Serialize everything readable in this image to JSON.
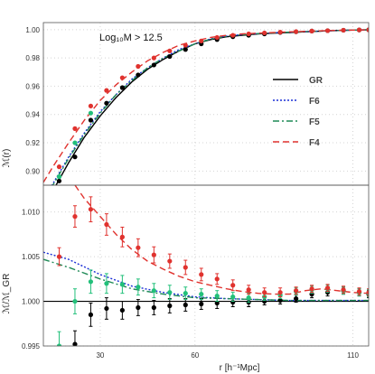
{
  "chart_data": {
    "type": "line",
    "annotation": "Log₁₀M > 12.5",
    "colors": {
      "GR": "#000000",
      "F6": "#1a2ed6",
      "F5": "#1f8a57",
      "F4": "#e0322e",
      "F5_points": "#22c07a"
    },
    "x_axis": {
      "label": "r [h⁻¹Mpc]",
      "xlim": [
        12,
        115
      ],
      "ticks": [
        30,
        60,
        110
      ]
    },
    "top_panel": {
      "ylabel": "ℳ(r)",
      "ylim": [
        0.89,
        1.005
      ],
      "yticks": [
        "0.90",
        "0.92",
        "0.94",
        "0.96",
        "0.98",
        "1.00"
      ],
      "legend": [
        "GR",
        "F6",
        "F5",
        "F4"
      ],
      "legend_position": "center-right",
      "series": [
        {
          "name": "GR",
          "style": "solid",
          "x": [
            12,
            15,
            20,
            25,
            30,
            35,
            40,
            45,
            50,
            55,
            60,
            65,
            70,
            75,
            80,
            85,
            90,
            95,
            100,
            105,
            110,
            115
          ],
          "y": [
            0.876,
            0.886,
            0.906,
            0.924,
            0.939,
            0.952,
            0.963,
            0.972,
            0.979,
            0.985,
            0.99,
            0.993,
            0.995,
            0.996,
            0.997,
            0.9975,
            0.998,
            0.9985,
            0.999,
            0.9994,
            0.9997,
            0.9999
          ]
        },
        {
          "name": "F6",
          "style": "dotted",
          "x": [
            12,
            15,
            20,
            25,
            30,
            35,
            40,
            45,
            50,
            55,
            60,
            65,
            70,
            75,
            80,
            85,
            90,
            95,
            100,
            105,
            110,
            115
          ],
          "y": [
            0.881,
            0.891,
            0.91,
            0.927,
            0.942,
            0.954,
            0.965,
            0.973,
            0.98,
            0.986,
            0.99,
            0.9935,
            0.9955,
            0.9965,
            0.9972,
            0.9978,
            0.9982,
            0.9986,
            0.999,
            0.9994,
            0.9997,
            0.9999
          ]
        },
        {
          "name": "F5",
          "style": "dashdot",
          "x": [
            12,
            15,
            20,
            25,
            30,
            35,
            40,
            45,
            50,
            55,
            60,
            65,
            70,
            75,
            80,
            85,
            90,
            95,
            100,
            105,
            110,
            115
          ],
          "y": [
            0.88,
            0.89,
            0.909,
            0.926,
            0.941,
            0.954,
            0.964,
            0.973,
            0.98,
            0.985,
            0.99,
            0.9933,
            0.9953,
            0.9964,
            0.9972,
            0.9978,
            0.9982,
            0.9986,
            0.999,
            0.9994,
            0.9997,
            0.9999
          ]
        },
        {
          "name": "F4",
          "style": "dashed",
          "x": [
            12,
            15,
            20,
            25,
            30,
            35,
            40,
            45,
            50,
            55,
            60,
            65,
            70,
            75,
            80,
            85,
            90,
            95,
            100,
            105,
            110,
            115
          ],
          "y": [
            0.892,
            0.903,
            0.92,
            0.936,
            0.95,
            0.961,
            0.97,
            0.978,
            0.984,
            0.989,
            0.992,
            0.9945,
            0.996,
            0.997,
            0.9975,
            0.998,
            0.9985,
            0.9988,
            0.9992,
            0.9995,
            0.9997,
            0.9999
          ]
        }
      ],
      "points": [
        {
          "name": "GR",
          "x": [
            17,
            22,
            27,
            32,
            37,
            42,
            47,
            52,
            57,
            62,
            67,
            72,
            77,
            82,
            87,
            92,
            97,
            102,
            107,
            112,
            115
          ],
          "y": [
            0.893,
            0.91,
            0.936,
            0.948,
            0.959,
            0.968,
            0.975,
            0.981,
            0.986,
            0.99,
            0.993,
            0.995,
            0.996,
            0.997,
            0.998,
            0.9985,
            0.999,
            0.9993,
            0.9996,
            0.9998,
            0.9999
          ]
        },
        {
          "name": "F5",
          "x": [
            17,
            22,
            27
          ],
          "y": [
            0.896,
            0.92,
            0.941
          ]
        },
        {
          "name": "F4",
          "x": [
            17,
            22,
            27,
            32,
            37,
            42,
            47,
            52,
            57,
            62,
            67,
            72,
            77,
            82,
            87,
            92,
            97,
            102,
            107,
            112,
            115
          ],
          "y": [
            0.903,
            0.93,
            0.946,
            0.957,
            0.966,
            0.974,
            0.98,
            0.985,
            0.989,
            0.992,
            0.9945,
            0.996,
            0.997,
            0.9977,
            0.9982,
            0.9986,
            0.999,
            0.9993,
            0.9996,
            0.9998,
            0.9999
          ]
        }
      ]
    },
    "bottom_panel": {
      "ylabel": "ℳ/ℳ_GR",
      "ylim": [
        0.995,
        1.013
      ],
      "yticks": [
        "0.995",
        "1.000",
        "1.005",
        "1.010"
      ],
      "reference_line": 1.0,
      "series": [
        {
          "name": "F6",
          "style": "dotted",
          "x": [
            12,
            20,
            30,
            40,
            50,
            60,
            70,
            80,
            90,
            100,
            110,
            115
          ],
          "y": [
            1.0055,
            1.0047,
            1.003,
            1.0017,
            1.001,
            1.0005,
            1.0003,
            1.0002,
            1.0001,
            1.0001,
            1.0001,
            1.0001
          ]
        },
        {
          "name": "F5",
          "style": "dashdot",
          "x": [
            12,
            20,
            30,
            40,
            50,
            60,
            70,
            80,
            90,
            100,
            110,
            115
          ],
          "y": [
            1.0047,
            1.0038,
            1.0025,
            1.0014,
            1.0008,
            1.0004,
            1.0003,
            1.0002,
            1.0001,
            1.0001,
            1.0001,
            1.0001
          ]
        },
        {
          "name": "F4",
          "style": "dashed",
          "x": [
            22,
            25,
            30,
            35,
            40,
            45,
            50,
            55,
            60,
            65,
            70,
            75,
            80,
            85,
            90,
            95,
            100,
            105,
            110,
            115
          ],
          "y": [
            1.013,
            1.0115,
            1.0095,
            1.0075,
            1.0058,
            1.0045,
            1.0036,
            1.0028,
            1.0022,
            1.0018,
            1.0014,
            1.0011,
            1.0009,
            1.0008,
            1.0008,
            1.0012,
            1.0014,
            1.0012,
            1.001,
            1.0009
          ]
        }
      ],
      "points": [
        {
          "name": "GR",
          "x": [
            22,
            27,
            32,
            37,
            42,
            47,
            52,
            57,
            62,
            67,
            72,
            77,
            82,
            87,
            92,
            97,
            102,
            107,
            112,
            115
          ],
          "y": [
            0.9952,
            0.9985,
            0.9992,
            0.999,
            0.9993,
            0.9993,
            0.9995,
            0.9996,
            0.9997,
            0.9998,
            0.9999,
            0.9999,
            1.0,
            1.0001,
            1.0003,
            1.0008,
            1.001,
            1.0012,
            1.001,
            1.0008
          ],
          "err": [
            0.0015,
            0.0013,
            0.0012,
            0.001,
            0.0009,
            0.0008,
            0.0008,
            0.0007,
            0.0006,
            0.0006,
            0.0005,
            0.0005,
            0.0004,
            0.0004,
            0.0004,
            0.0004,
            0.0004,
            0.0004,
            0.0004,
            0.0004
          ]
        },
        {
          "name": "F5",
          "x": [
            17,
            22,
            27,
            32,
            37,
            42,
            47,
            52,
            57,
            62,
            67,
            72,
            77,
            82,
            87,
            92,
            97,
            102,
            107,
            112,
            115
          ],
          "y": [
            0.995,
            1.0,
            1.0022,
            1.002,
            1.0019,
            1.0016,
            1.0012,
            1.001,
            1.0009,
            1.0008,
            1.0006,
            1.0005,
            1.0004,
            1.0005,
            1.0007,
            1.0011,
            1.0013,
            1.0014,
            1.0012,
            1.001,
            1.0009
          ],
          "err": [
            0.0016,
            0.0014,
            0.0013,
            0.0011,
            0.001,
            0.0009,
            0.0008,
            0.0008,
            0.0007,
            0.0006,
            0.0006,
            0.0005,
            0.0005,
            0.0004,
            0.0004,
            0.0004,
            0.0004,
            0.0004,
            0.0004,
            0.0004,
            0.0004
          ]
        },
        {
          "name": "F4",
          "x": [
            17,
            22,
            27,
            32,
            37,
            42,
            47,
            52,
            57,
            62,
            67,
            72,
            77,
            82,
            87,
            92,
            97,
            102,
            107,
            112,
            115
          ],
          "y": [
            1.005,
            1.0095,
            1.0103,
            1.0086,
            1.0072,
            1.006,
            1.0052,
            1.0045,
            1.0038,
            1.003,
            1.0025,
            1.0018,
            1.0013,
            1.001,
            1.001,
            1.0012,
            1.0014,
            1.0015,
            1.0013,
            1.0011,
            1.001
          ],
          "err": [
            0.001,
            0.0012,
            0.0014,
            0.0012,
            0.0011,
            0.001,
            0.0009,
            0.0008,
            0.0008,
            0.0007,
            0.0006,
            0.0006,
            0.0005,
            0.0005,
            0.0005,
            0.0004,
            0.0004,
            0.0004,
            0.0004,
            0.0004,
            0.0004
          ]
        }
      ]
    }
  }
}
